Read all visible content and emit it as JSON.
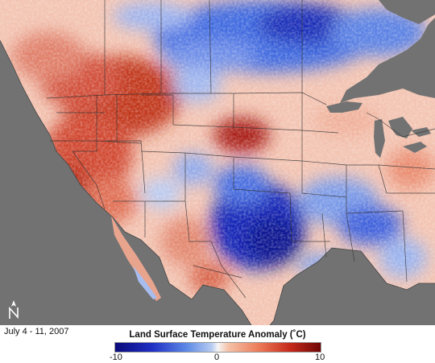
{
  "caption": {
    "date_range": "July 4 - 11, 2007"
  },
  "legend": {
    "title": "Land Surface Temperature Anomaly (˚C)",
    "min_label": "-10",
    "mid_label": "0",
    "max_label": "10",
    "scale_min": -10,
    "scale_max": 10,
    "colors": {
      "cold_extreme": "#0a0a7a",
      "cold": "#1f2fc4",
      "cool": "#5e8ae6",
      "neutral": "#f5f5f5",
      "warm": "#ec7a58",
      "hot": "#c62a1a",
      "hot_extreme": "#6e0606"
    }
  },
  "map": {
    "ocean_color": "#727272",
    "north_arrow_icon": "north-arrow-icon",
    "compass_letter": "N"
  }
}
